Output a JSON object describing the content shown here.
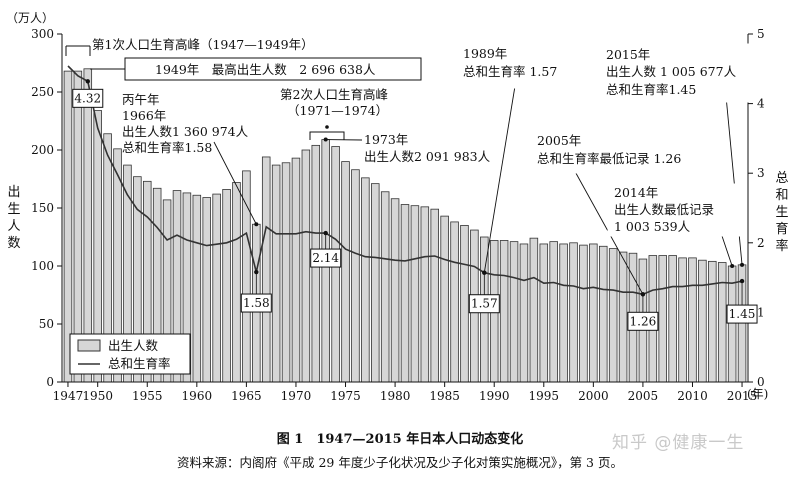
{
  "chart_data": {
    "type": "bar",
    "title": "",
    "y_left_unit": "（万人）",
    "y_left_label": "出生人数",
    "y_right_label": "总和生育率",
    "x_unit": "(年)",
    "ylim_left": [
      0,
      300
    ],
    "ylim_right": [
      0,
      5
    ],
    "left_ticks": [
      "0",
      "50",
      "100",
      "150",
      "200",
      "250",
      "300"
    ],
    "right_ticks": [
      "0",
      "1",
      "2",
      "3",
      "4",
      "5"
    ],
    "x_tick_labels": [
      "1947",
      "1950",
      "1955",
      "1960",
      "1965",
      "1970",
      "1975",
      "1980",
      "1985",
      "1990",
      "1995",
      "2000",
      "2005",
      "2010",
      "2015"
    ],
    "x_years": [
      1947,
      1948,
      1949,
      1950,
      1951,
      1952,
      1953,
      1954,
      1955,
      1956,
      1957,
      1958,
      1959,
      1960,
      1961,
      1962,
      1963,
      1964,
      1965,
      1966,
      1967,
      1968,
      1969,
      1970,
      1971,
      1972,
      1973,
      1974,
      1975,
      1976,
      1977,
      1978,
      1979,
      1980,
      1981,
      1982,
      1983,
      1984,
      1985,
      1986,
      1987,
      1988,
      1989,
      1990,
      1991,
      1992,
      1993,
      1994,
      1995,
      1996,
      1997,
      1998,
      1999,
      2000,
      2001,
      2002,
      2003,
      2004,
      2005,
      2006,
      2007,
      2008,
      2009,
      2010,
      2011,
      2012,
      2013,
      2014,
      2015
    ],
    "series": [
      {
        "name": "出生人数",
        "type": "bar",
        "axis": "left",
        "values": [
          268,
          268,
          270,
          234,
          214,
          201,
          187,
          177,
          173,
          167,
          157,
          165,
          163,
          161,
          159,
          162,
          166,
          172,
          182,
          136,
          194,
          187,
          189,
          193,
          200,
          204,
          209,
          203,
          190,
          183,
          176,
          171,
          164,
          158,
          153,
          152,
          151,
          149,
          143,
          138,
          135,
          131,
          125,
          122,
          122,
          121,
          119,
          124,
          119,
          121,
          119,
          120,
          118,
          119,
          117,
          115,
          112,
          111,
          106,
          109,
          109,
          109,
          107,
          107,
          105,
          104,
          103,
          100,
          101
        ]
      },
      {
        "name": "总和生育率",
        "type": "line",
        "axis": "right",
        "values": [
          4.54,
          4.4,
          4.32,
          3.65,
          3.26,
          2.98,
          2.69,
          2.48,
          2.37,
          2.22,
          2.04,
          2.11,
          2.04,
          2.0,
          1.96,
          1.98,
          2.0,
          2.05,
          2.14,
          1.58,
          2.23,
          2.13,
          2.13,
          2.13,
          2.16,
          2.14,
          2.14,
          2.05,
          1.91,
          1.85,
          1.8,
          1.79,
          1.77,
          1.75,
          1.74,
          1.77,
          1.8,
          1.81,
          1.76,
          1.72,
          1.69,
          1.66,
          1.57,
          1.54,
          1.53,
          1.5,
          1.46,
          1.5,
          1.42,
          1.43,
          1.39,
          1.38,
          1.34,
          1.36,
          1.33,
          1.32,
          1.29,
          1.29,
          1.26,
          1.32,
          1.34,
          1.37,
          1.37,
          1.39,
          1.39,
          1.41,
          1.43,
          1.42,
          1.45
        ]
      }
    ],
    "value_boxes": [
      {
        "year": 1949,
        "text": "4.32"
      },
      {
        "year": 1966,
        "text": "1.58"
      },
      {
        "year": 1973,
        "text": "2.14"
      },
      {
        "year": 1989,
        "text": "1.57"
      },
      {
        "year": 2005,
        "text": "1.26"
      },
      {
        "year": 2015,
        "text": "1.45"
      }
    ],
    "annotations": {
      "peak1_title": "第1次人口生育高峰（1947—1949年）",
      "peak1_box": "1949年　最高出生人数　2 696 638人",
      "bingwu": [
        "丙午年",
        "1966年",
        "出生人数1 360 974人",
        "总和生育率1.58"
      ],
      "peak2_title": [
        "第2次人口生育高峰",
        "（1971—1974）"
      ],
      "y1973": [
        "1973年",
        "出生人数2 091 983人"
      ],
      "y1989": [
        "1989年",
        "总和生育率 1.57"
      ],
      "y2005": [
        "2005年",
        "总和生育率最低记录 1.26"
      ],
      "y2014": [
        "2014年",
        "出生人数最低记录",
        "1 003 539人"
      ],
      "y2015": [
        "2015年",
        "出生人数 1 005 677人",
        "总和生育率1.45"
      ]
    },
    "legend": {
      "placement": "bottom-left",
      "items": [
        "出生人数",
        "总和生育率"
      ]
    },
    "grid": false
  },
  "caption": {
    "figure": "图 1　1947—2015 年日本人口动态变化",
    "source": "资料来源：内阁府《平成 29 年度少子化状况及少子化对策实施概况》，第 3 页。"
  },
  "watermark": "知乎 @健康一生",
  "colors": {
    "bar_fill": "#d6d6d6",
    "bar_stroke": "#333333",
    "line": "#333333"
  }
}
